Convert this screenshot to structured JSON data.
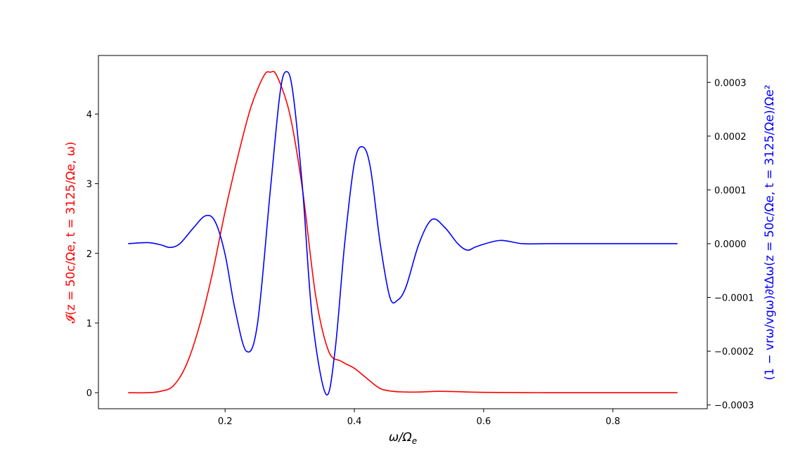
{
  "chart_data": {
    "type": "line",
    "xlabel": "ω/Ω",
    "xlabel_sub": "e",
    "ylabel_left": "𝓘(z = 50c/Ωe, t = 3125/Ωe, ω)",
    "ylabel_right": "(1 − vrω/vgω)∂tΔω(z = 50c/Ωe, t = 3125/Ωe)/Ωe²",
    "xlim": [
      0.004,
      0.946
    ],
    "ylim_left": [
      -0.23,
      4.84
    ],
    "ylim_right": [
      -0.000307,
      0.00035
    ],
    "x_ticks": [
      "0.2",
      "0.4",
      "0.6",
      "0.8"
    ],
    "y_ticks_left": [
      "0",
      "1",
      "2",
      "3",
      "4"
    ],
    "y_ticks_right": [
      "−0.0003",
      "−0.0002",
      "−0.0001",
      "0.0000",
      "0.0001",
      "0.0002",
      "0.0003"
    ],
    "series": [
      {
        "axis": "left",
        "color": "#ff0000",
        "x": [
          0.05,
          0.08,
          0.1,
          0.12,
          0.14,
          0.16,
          0.18,
          0.2,
          0.22,
          0.24,
          0.26,
          0.27,
          0.28,
          0.3,
          0.32,
          0.34,
          0.36,
          0.38,
          0.4,
          0.42,
          0.44,
          0.46,
          0.48,
          0.5,
          0.53,
          0.56,
          0.6,
          0.7,
          0.8,
          0.9
        ],
        "y": [
          0.0,
          0.0,
          0.02,
          0.1,
          0.4,
          0.95,
          1.7,
          2.6,
          3.4,
          4.1,
          4.55,
          4.6,
          4.55,
          4.0,
          2.9,
          1.4,
          0.6,
          0.45,
          0.35,
          0.2,
          0.06,
          0.02,
          0.01,
          0.01,
          0.02,
          0.015,
          0.005,
          0.0,
          0.0,
          0.0
        ]
      },
      {
        "axis": "right",
        "color": "#0000ff",
        "x": [
          0.05,
          0.08,
          0.1,
          0.115,
          0.13,
          0.15,
          0.17,
          0.185,
          0.2,
          0.215,
          0.233,
          0.25,
          0.27,
          0.285,
          0.295,
          0.305,
          0.32,
          0.335,
          0.356,
          0.37,
          0.385,
          0.4,
          0.413,
          0.425,
          0.44,
          0.455,
          0.467,
          0.48,
          0.5,
          0.52,
          0.54,
          0.56,
          0.575,
          0.59,
          0.625,
          0.66,
          0.7,
          0.8,
          0.9
        ],
        "y": [
          0.0,
          2e-06,
          -2e-06,
          -7e-06,
          0.0,
          2.8e-05,
          5.2e-05,
          4e-05,
          -2e-05,
          -0.00012,
          -0.0002,
          -0.00015,
          0.0001,
          0.00028,
          0.00032,
          0.00028,
          0.0001,
          -0.00014,
          -0.00028,
          -0.0002,
          0.0,
          0.00015,
          0.00018,
          0.00014,
          0.0,
          -0.0001,
          -0.000105,
          -8e-05,
          0.0,
          4.5e-05,
          3e-05,
          0.0,
          -1.2e-05,
          -5e-06,
          6e-06,
          0.0,
          0.0,
          0.0,
          0.0
        ]
      }
    ]
  }
}
